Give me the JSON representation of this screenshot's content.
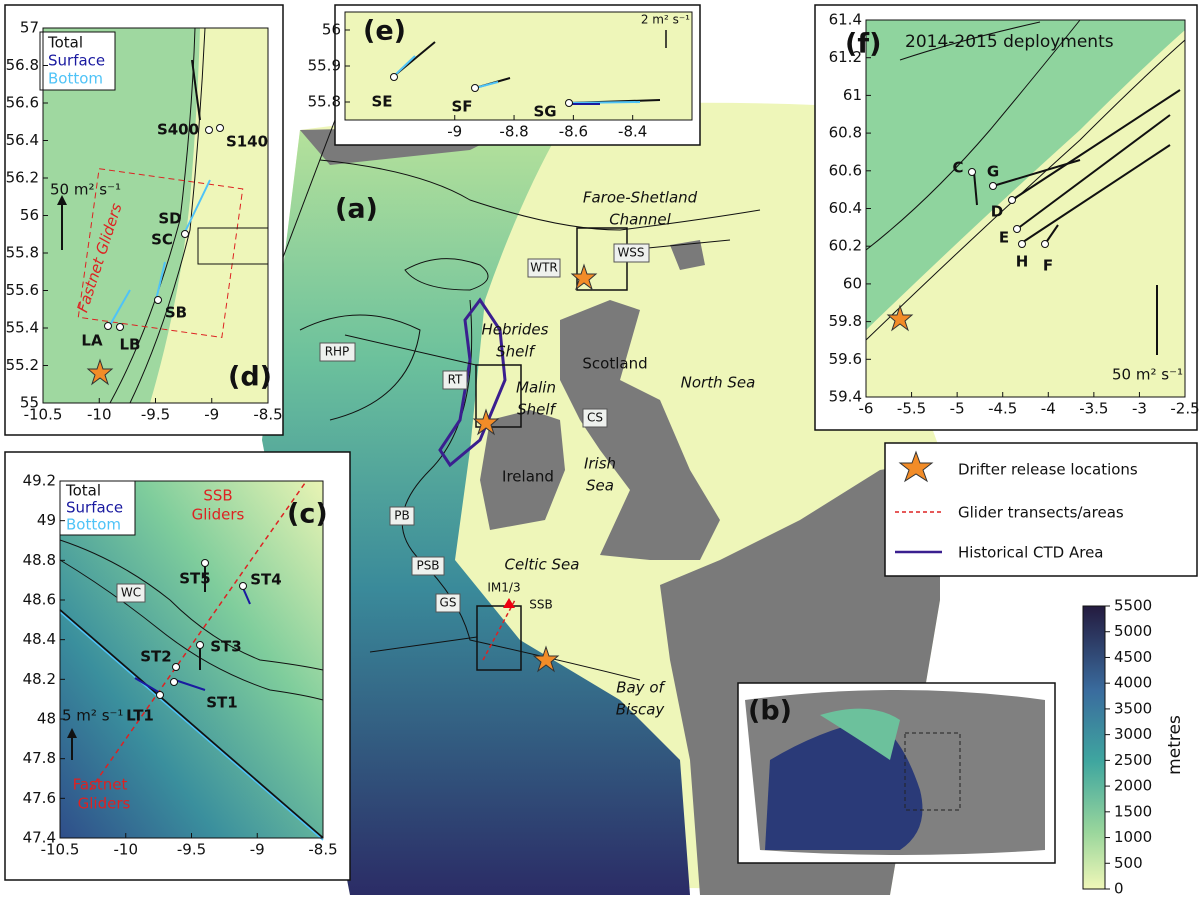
{
  "main": {
    "label": "(a)",
    "places": [
      "Faroe-Shetland",
      "Channel",
      "WTR",
      "WSS",
      "Hebrides",
      "Shelf",
      "Malin",
      "Shelf",
      "Scotland",
      "North Sea",
      "RHP",
      "RT",
      "CS",
      "Ireland",
      "Irish",
      "Sea",
      "PB",
      "PSB",
      "Celtic Sea",
      "GS",
      "IM1/3",
      "SSB",
      "Bay of",
      "Biscay"
    ]
  },
  "panel_b": {
    "label": "(b)"
  },
  "panel_c": {
    "label": "(c)",
    "legend": [
      "Total",
      "Surface",
      "Bottom"
    ],
    "gliders_ssb": [
      "SSB",
      "Gliders"
    ],
    "stations": [
      "ST5",
      "ST4",
      "WC",
      "ST3",
      "ST2",
      "ST1",
      "LT1"
    ],
    "scale": "5 m² s⁻¹",
    "gliders_fastnet": [
      "Fastnet",
      "Gliders"
    ],
    "xlim": [
      -10.5,
      -8.5
    ],
    "xticks": [
      -10.5,
      -10,
      -9.5,
      -9,
      -8.5
    ],
    "ylim": [
      47.4,
      49.2
    ],
    "yticks": [
      47.4,
      47.6,
      47.8,
      48,
      48.2,
      48.4,
      48.6,
      48.8,
      49,
      49.2
    ]
  },
  "panel_d": {
    "label": "(d)",
    "legend": [
      "Total",
      "Surface",
      "Bottom"
    ],
    "stations": [
      "S400",
      "S140",
      "SD",
      "SC",
      "SB",
      "LA",
      "LB"
    ],
    "scale": "50 m² s⁻¹",
    "gliders": "Fastnet Gliders",
    "xlim": [
      -10.5,
      -8.5
    ],
    "xticks": [
      -10.5,
      -10,
      -9.5,
      -9,
      -8.5
    ],
    "ylim": [
      55,
      57
    ],
    "yticks": [
      55,
      55.2,
      55.4,
      55.6,
      55.8,
      56,
      56.2,
      56.4,
      56.6,
      56.8,
      57
    ]
  },
  "panel_e": {
    "label": "(e)",
    "scale": "2 m² s⁻¹",
    "stations": [
      "SE",
      "SF",
      "SG"
    ],
    "xlim": [
      -9.37,
      -8.2
    ],
    "xticks": [
      -9,
      -8.8,
      -8.6,
      -8.4
    ],
    "ylim": [
      55.75,
      56.05
    ],
    "yticks": [
      55.8,
      55.9,
      56
    ]
  },
  "panel_f": {
    "label": "(f)",
    "title": "2014-2015 deployments",
    "stations": [
      "C",
      "G",
      "D",
      "E",
      "H",
      "F"
    ],
    "scale": "50 m² s⁻¹",
    "xlim": [
      -6,
      -2.5
    ],
    "xticks": [
      -6,
      -5.5,
      -5,
      -4.5,
      -4,
      -3.5,
      -3,
      -2.5
    ],
    "ylim": [
      59.4,
      61.4
    ],
    "yticks": [
      59.4,
      59.6,
      59.8,
      60,
      60.2,
      60.4,
      60.6,
      60.8,
      61,
      61.2,
      61.4
    ]
  },
  "legend": [
    "Drifter release locations",
    "Glider transects/areas",
    "Historical CTD Area"
  ],
  "colorbar": {
    "label": "metres",
    "lim": [
      0,
      5500
    ],
    "ticks": [
      0,
      500,
      1000,
      1500,
      2000,
      2500,
      3000,
      3500,
      4000,
      4500,
      5000,
      5500
    ]
  }
}
